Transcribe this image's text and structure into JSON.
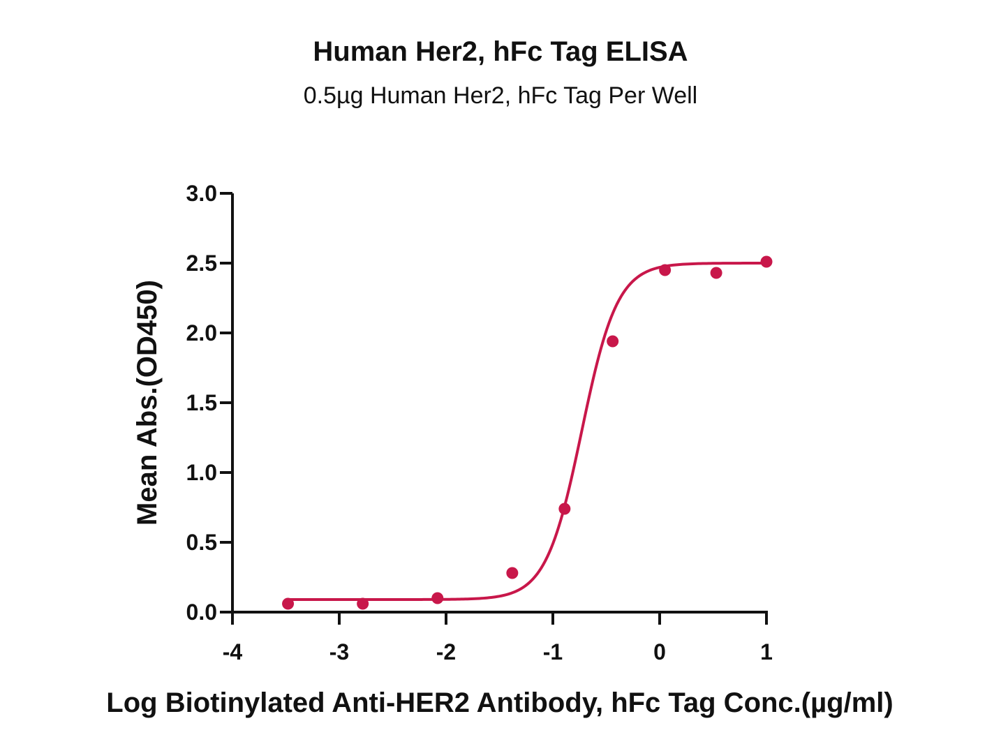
{
  "chart_data": {
    "type": "scatter",
    "title": "Human Her2, hFc Tag ELISA",
    "subtitle": "0.5µg Human Her2, hFc Tag Per Well",
    "xlabel": "Log Biotinylated Anti-HER2 Antibody, hFc Tag Conc.(µg/ml)",
    "ylabel": "Mean Abs.(OD450)",
    "xlim": [
      -4,
      1
    ],
    "ylim": [
      0,
      3.0
    ],
    "x_ticks": [
      -4,
      -3,
      -2,
      -1,
      0,
      1
    ],
    "x_tick_labels": [
      "-4",
      "-3",
      "-2",
      "-1",
      "0",
      "1"
    ],
    "y_ticks": [
      0,
      0.5,
      1.0,
      1.5,
      2.0,
      2.5,
      3.0
    ],
    "y_tick_labels": [
      "0.0",
      "0.5",
      "1.0",
      "1.5",
      "2.0",
      "2.5",
      "3.0"
    ],
    "grid": false,
    "color": "#c8174a",
    "series": [
      {
        "points": [
          {
            "x": -3.48,
            "y": 0.06
          },
          {
            "x": -2.78,
            "y": 0.06
          },
          {
            "x": -2.08,
            "y": 0.1
          },
          {
            "x": -1.38,
            "y": 0.28
          },
          {
            "x": -0.89,
            "y": 0.74
          },
          {
            "x": -0.44,
            "y": 1.94
          },
          {
            "x": 0.05,
            "y": 2.45
          },
          {
            "x": 0.53,
            "y": 2.43
          },
          {
            "x": 1.0,
            "y": 2.51
          }
        ],
        "fit": {
          "model": "4PL",
          "bottom": 0.09,
          "top": 2.5,
          "logEC50": -0.73,
          "hill": 2.6
        }
      }
    ]
  }
}
